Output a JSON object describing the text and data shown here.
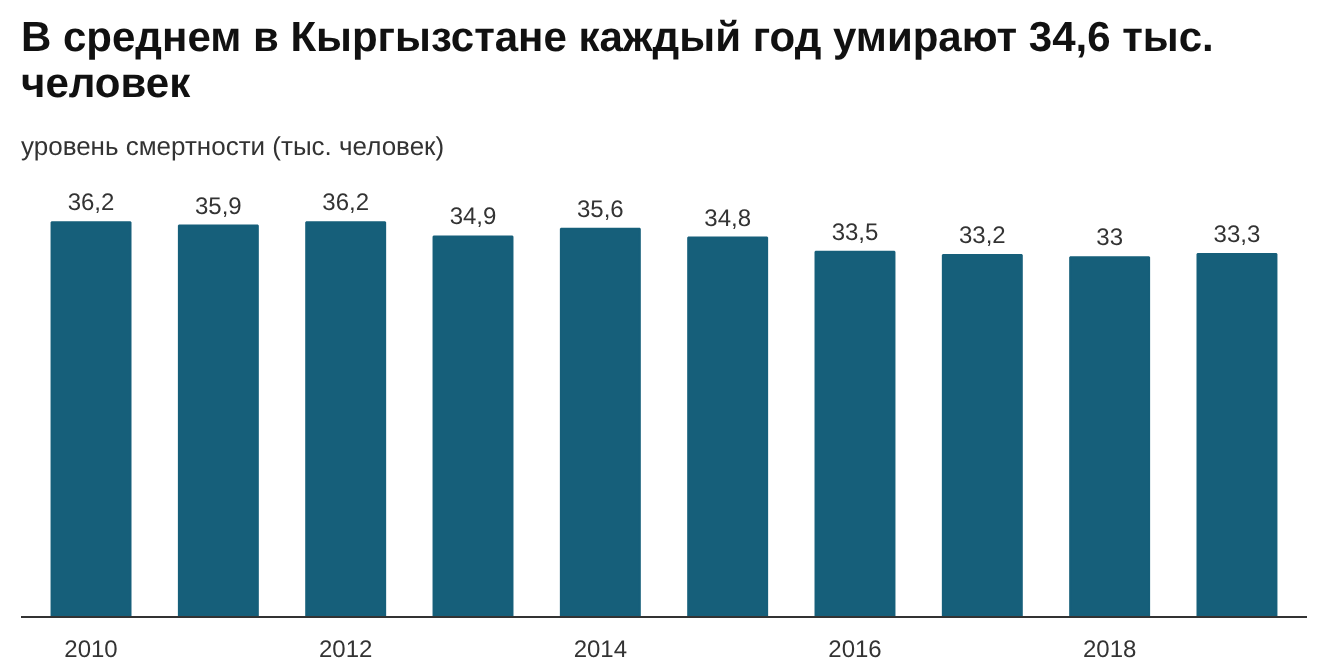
{
  "chart_data": {
    "type": "bar",
    "title": "В среднем в Кыргызстане каждый год умирают 34,6 тыс. человек",
    "subtitle": "уровень смертности (тыс. человек)",
    "categories": [
      "2010",
      null,
      "2012",
      null,
      "2014",
      null,
      "2016",
      null,
      "2018",
      null
    ],
    "values": [
      36.2,
      35.9,
      36.2,
      34.9,
      35.6,
      34.8,
      33.5,
      33.2,
      33,
      33.3
    ],
    "value_labels": [
      "36,2",
      "35,9",
      "36,2",
      "34,9",
      "35,6",
      "34,8",
      "33,5",
      "33,2",
      "33",
      "33,3"
    ],
    "color": "#165f7a",
    "grid": false
  }
}
